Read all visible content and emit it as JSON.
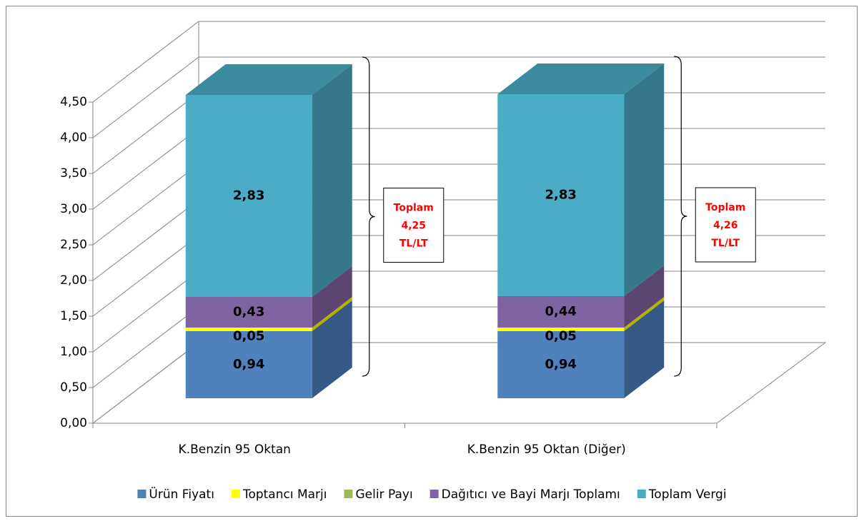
{
  "chart_data": {
    "type": "bar3d_stacked",
    "categories": [
      "K.Benzin 95 Oktan",
      "K.Benzin 95 Oktan (Diğer)"
    ],
    "series": [
      {
        "name": "Ürün Fiyatı",
        "color": "#4f81bd",
        "values": [
          0.94,
          0.94
        ],
        "value_labels": [
          "0,94",
          "0,94"
        ]
      },
      {
        "name": "Toptancı Marjı",
        "color": "#ffff00",
        "values": [
          0.05,
          0.05
        ],
        "value_labels": [
          "0,05",
          "0,05"
        ]
      },
      {
        "name": "Gelir Payı",
        "color": "#9bbb59",
        "values": [
          0,
          0
        ]
      },
      {
        "name": "Dağıtıcı ve Bayi Marjı Toplamı",
        "color": "#8064a2",
        "values": [
          0.43,
          0.44
        ],
        "value_labels": [
          "0,43",
          "0,44"
        ]
      },
      {
        "name": "Toplam Vergi",
        "color": "#4bacc6",
        "values": [
          2.83,
          2.83
        ],
        "value_labels": [
          "2,83",
          "2,83"
        ]
      }
    ],
    "ylim": [
      0,
      4.5
    ],
    "yticks": [
      {
        "value": 0,
        "label": "0,00"
      },
      {
        "value": 0.5,
        "label": "0,50"
      },
      {
        "value": 1,
        "label": "1,00"
      },
      {
        "value": 1.5,
        "label": "1,50"
      },
      {
        "value": 2,
        "label": "2,00"
      },
      {
        "value": 2.5,
        "label": "2,50"
      },
      {
        "value": 3,
        "label": "3,00"
      },
      {
        "value": 3.5,
        "label": "3,50"
      },
      {
        "value": 4,
        "label": "4,00"
      },
      {
        "value": 4.5,
        "label": "4,50"
      }
    ],
    "grid": true,
    "legend": "bottom",
    "annotations": [
      [
        "Toplam",
        "4,25",
        "TL/LT"
      ],
      [
        "Toplam",
        "4,26",
        "TL/LT"
      ]
    ]
  }
}
